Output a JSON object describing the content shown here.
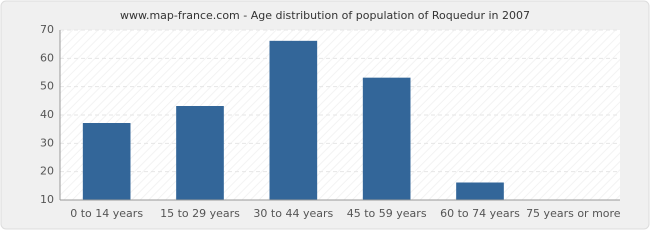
{
  "chart_data": {
    "type": "bar",
    "title": "www.map-france.com - Age distribution of population of Roquedur in 2007",
    "categories": [
      "0 to 14 years",
      "15 to 29 years",
      "30 to 44 years",
      "45 to 59 years",
      "60 to 74 years",
      "75 years or more"
    ],
    "values": [
      37,
      43,
      66,
      53,
      16,
      10
    ],
    "color": "#336699",
    "ylim": [
      10,
      70
    ],
    "yticks": [
      10,
      20,
      30,
      40,
      50,
      60,
      70
    ],
    "grid": true
  }
}
